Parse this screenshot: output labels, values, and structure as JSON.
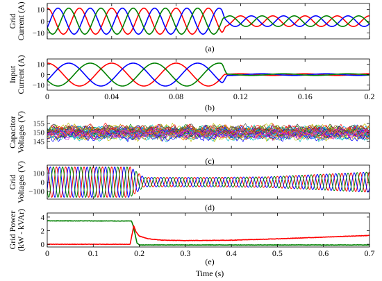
{
  "figure": {
    "colors": {
      "red": "#ff0000",
      "green": "#008000",
      "blue": "#0000ff"
    }
  },
  "chart_data": [
    {
      "panel": "(a)",
      "type": "line",
      "ylabel": [
        "Grid",
        "Current (A)"
      ],
      "xlim": [
        0,
        0.2
      ],
      "ylim": [
        -15,
        15
      ],
      "yticks": [
        -10,
        0,
        10
      ],
      "xticks": [
        0,
        0.04,
        0.08,
        0.12,
        0.16,
        0.2
      ],
      "xticklabels_shown": false,
      "series": [
        {
          "color": "red",
          "phase_deg": 90,
          "freq_hz": 50,
          "amp_before": 11,
          "amp_after": 4.5,
          "switch_t": 0.108,
          "transition_s": 0.003
        },
        {
          "color": "blue",
          "phase_deg": -30,
          "freq_hz": 50,
          "amp_before": 11,
          "amp_after": 4.5,
          "switch_t": 0.108,
          "transition_s": 0.003
        },
        {
          "color": "green",
          "phase_deg": 210,
          "freq_hz": 50,
          "amp_before": 11,
          "amp_after": 4.5,
          "switch_t": 0.108,
          "transition_s": 0.003
        }
      ]
    },
    {
      "panel": "(b)",
      "type": "line",
      "ylabel": [
        "Input",
        "Current (A)"
      ],
      "xlim": [
        0,
        0.2
      ],
      "ylim": [
        -15,
        15
      ],
      "yticks": [
        -10,
        0,
        10
      ],
      "xticks": [
        0,
        0.04,
        0.08,
        0.12,
        0.16,
        0.2
      ],
      "xticklabels": [
        "0",
        "0.04",
        "0.08",
        "0.12",
        "0.16",
        "0.2"
      ],
      "series": [
        {
          "color": "red",
          "phase_deg": 90,
          "freq_hz": 25,
          "amp_before": 11,
          "amp_after": 0.8,
          "switch_t": 0.108,
          "transition_s": 0.004
        },
        {
          "color": "blue",
          "phase_deg": -30,
          "freq_hz": 25,
          "amp_before": 11,
          "amp_after": 0.8,
          "switch_t": 0.108,
          "transition_s": 0.004
        },
        {
          "color": "green",
          "phase_deg": 210,
          "freq_hz": 25,
          "amp_before": 11,
          "amp_after": 0.8,
          "switch_t": 0.108,
          "transition_s": 0.004
        }
      ]
    },
    {
      "panel": "(c)",
      "type": "line",
      "ylabel": [
        "Capacitor",
        "Voltages (V)"
      ],
      "xlim": [
        0,
        0.7
      ],
      "ylim": [
        141,
        159
      ],
      "yticks": [
        145,
        150,
        155
      ],
      "xticks": [
        0,
        0.1,
        0.2,
        0.3,
        0.4,
        0.5,
        0.6,
        0.7
      ],
      "xticklabels_shown": false,
      "mean_v": 150,
      "ripple_v": 4,
      "series_count": 36
    },
    {
      "panel": "(d)",
      "type": "line",
      "ylabel": [
        "Grid",
        "Voltages (V)"
      ],
      "xlim": [
        0,
        0.7
      ],
      "ylim": [
        -185,
        185
      ],
      "yticks": [
        -100,
        0,
        100
      ],
      "xticks": [
        0,
        0.1,
        0.2,
        0.3,
        0.4,
        0.5,
        0.6,
        0.7
      ],
      "xticklabels_shown": false,
      "envelope": {
        "t": [
          0,
          0.18,
          0.21,
          0.35,
          0.48,
          0.7
        ],
        "amp": [
          165,
          165,
          52,
          52,
          58,
          110
        ]
      },
      "series": [
        {
          "color": "red",
          "phase_deg": 90,
          "freq_hz": 50
        },
        {
          "color": "blue",
          "phase_deg": -30,
          "freq_hz": 50
        },
        {
          "color": "green",
          "phase_deg": 210,
          "freq_hz": 50
        }
      ]
    },
    {
      "panel": "(e)",
      "type": "line",
      "ylabel": [
        "Grid Power",
        "(kW - kVAr)"
      ],
      "xlabel": "Time (s)",
      "xlim": [
        0,
        0.7
      ],
      "ylim": [
        -0.4,
        4.6
      ],
      "yticks": [
        0,
        2,
        4
      ],
      "xticks": [
        0,
        0.1,
        0.2,
        0.3,
        0.4,
        0.5,
        0.6,
        0.7
      ],
      "xticklabels": [
        "0",
        "0.1",
        "0.2",
        "0.3",
        "0.4",
        "0.5",
        "0.6",
        "0.7"
      ],
      "series": [
        {
          "color": "green",
          "x": [
            0,
            0.183,
            0.186,
            0.195,
            0.2,
            0.7
          ],
          "y": [
            3.45,
            3.42,
            2.9,
            0.2,
            -0.1,
            -0.1
          ]
        },
        {
          "color": "red",
          "x": [
            0,
            0.18,
            0.188,
            0.193,
            0.2,
            0.22,
            0.25,
            0.3,
            0.4,
            0.5,
            0.6,
            0.7
          ],
          "y": [
            0,
            0,
            2.7,
            1.8,
            1.2,
            0.8,
            0.6,
            0.55,
            0.6,
            0.8,
            1.05,
            1.3
          ]
        }
      ]
    }
  ]
}
